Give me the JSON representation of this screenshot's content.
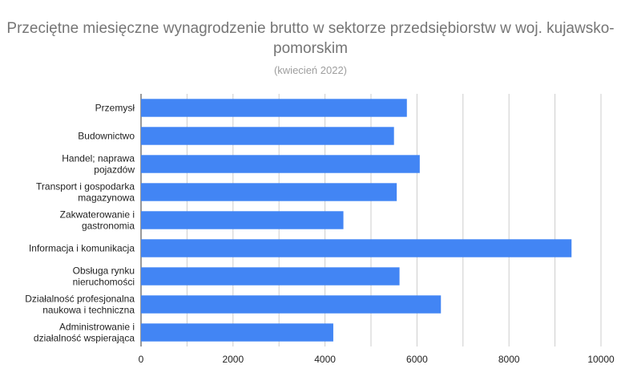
{
  "chart_data": {
    "type": "bar",
    "orientation": "horizontal",
    "title": "Przeciętne miesięczne wynagrodzenie brutto w sektorze przedsiębiorstw w woj. kujawsko-pomorskim",
    "subtitle": "(kwiecień 2022)",
    "categories": [
      "Przemysł",
      "Budownictwo",
      "Handel; naprawa pojazdów",
      "Transport i gospodarka magazynowa",
      "Zakwaterowanie i gastronomia",
      "Informacja i komunikacja",
      "Obsługa rynku nieruchomości",
      "Działalność profesjonalna naukowa i techniczna",
      "Administrowanie i działalność wspierająca"
    ],
    "category_lines": [
      [
        "Przemysł"
      ],
      [
        "Budownictwo"
      ],
      [
        "Handel; naprawa",
        "pojazdów"
      ],
      [
        "Transport i gospodarka",
        "magazynowa"
      ],
      [
        "Zakwaterowanie i",
        "gastronomia"
      ],
      [
        "Informacja i komunikacja"
      ],
      [
        "Obsługa rynku",
        "nieruchomości"
      ],
      [
        "Działalność profesjonalna",
        "naukowa i techniczna"
      ],
      [
        "Administrowanie i",
        "działalność wspierająca"
      ]
    ],
    "values": [
      5780,
      5500,
      6060,
      5560,
      4400,
      9360,
      5620,
      6520,
      4180
    ],
    "xlim": [
      0,
      10000
    ],
    "xticks": [
      0,
      2000,
      4000,
      6000,
      8000,
      10000
    ],
    "grid": true,
    "legend": "none",
    "bar_color": "#4285f4",
    "grid_color": "#cccccc"
  }
}
